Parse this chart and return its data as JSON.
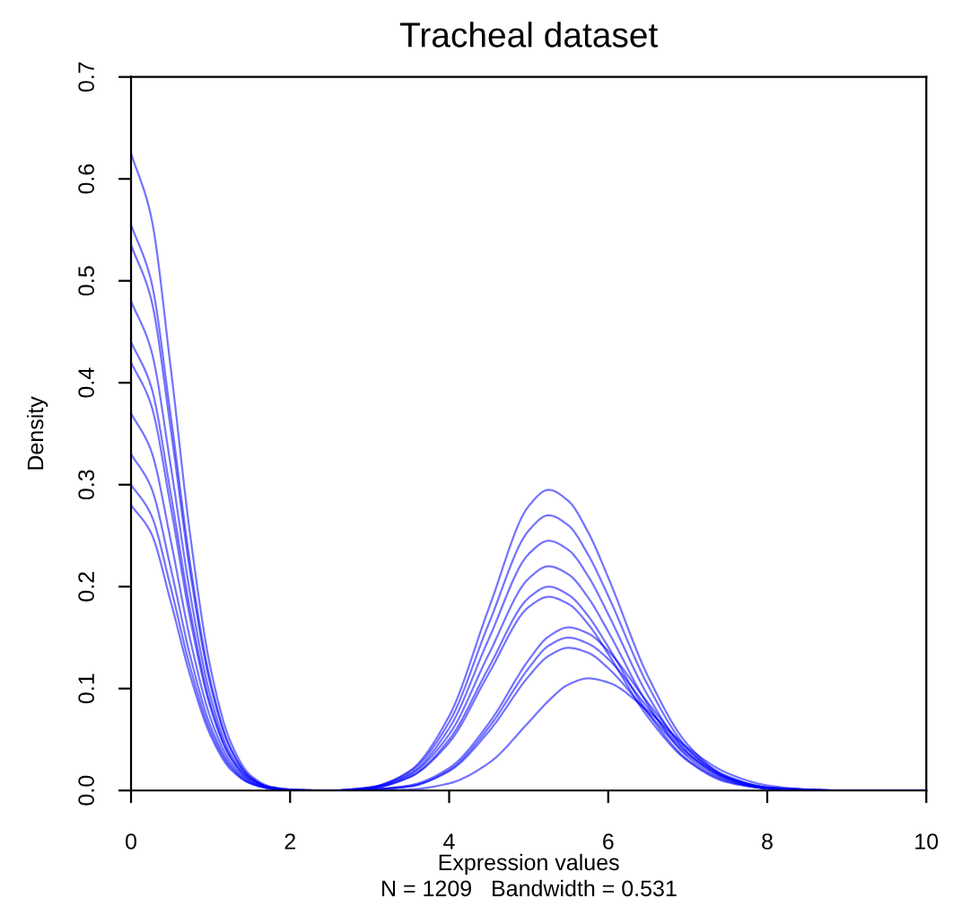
{
  "chart_data": {
    "type": "line",
    "title": "Tracheal dataset",
    "xlabel": "Expression values",
    "ylabel": "Density",
    "annotations": [
      "N = 1209   Bandwidth = 0.531"
    ],
    "x": [
      0,
      0.25,
      0.5,
      0.75,
      1,
      1.25,
      1.5,
      1.75,
      2,
      2.5,
      3,
      3.5,
      4,
      4.5,
      5,
      5.25,
      5.5,
      5.75,
      6,
      6.5,
      7,
      7.5,
      8,
      8.5,
      9,
      10
    ],
    "xlim": [
      0,
      10
    ],
    "xticks": [
      0,
      2,
      4,
      6,
      8,
      10
    ],
    "ylim": [
      0,
      0.7
    ],
    "yticks": [
      {
        "value": 0,
        "label": "0.0"
      },
      0.1,
      0.2,
      0.3,
      0.4,
      0.5,
      0.6,
      0.7
    ],
    "grid": false,
    "marker": "none",
    "line_style": "solid",
    "series": [
      {
        "color": "#0000ff",
        "values": [
          0.625,
          0.564,
          0.414,
          0.247,
          0.12,
          0.048,
          0.015,
          0.004,
          0.001,
          0,
          0,
          0.001,
          0.007,
          0.027,
          0.067,
          0.088,
          0.104,
          0.11,
          0.106,
          0.078,
          0.042,
          0.017,
          0.005,
          0.001,
          0,
          0
        ]
      },
      {
        "color": "#0000ff",
        "values": [
          0.555,
          0.501,
          0.367,
          0.219,
          0.107,
          0.042,
          0.013,
          0.003,
          0.001,
          0,
          0.001,
          0.004,
          0.019,
          0.058,
          0.112,
          0.132,
          0.14,
          0.135,
          0.12,
          0.076,
          0.035,
          0.012,
          0.003,
          0.001,
          0,
          0
        ]
      },
      {
        "color": "#0000ff",
        "values": [
          0.535,
          0.483,
          0.354,
          0.211,
          0.103,
          0.041,
          0.013,
          0.003,
          0.001,
          0,
          0.001,
          0.004,
          0.02,
          0.062,
          0.12,
          0.142,
          0.15,
          0.144,
          0.129,
          0.081,
          0.037,
          0.013,
          0.003,
          0.001,
          0,
          0
        ]
      },
      {
        "color": "#0000ff",
        "values": [
          0.48,
          0.433,
          0.318,
          0.19,
          0.092,
          0.036,
          0.012,
          0.003,
          0,
          0,
          0.001,
          0.005,
          0.022,
          0.066,
          0.128,
          0.151,
          0.16,
          0.154,
          0.137,
          0.086,
          0.04,
          0.014,
          0.003,
          0.001,
          0,
          0
        ]
      },
      {
        "color": "#0000ff",
        "values": [
          0.44,
          0.397,
          0.291,
          0.174,
          0.084,
          0.033,
          0.011,
          0.003,
          0,
          0,
          0.002,
          0.013,
          0.047,
          0.115,
          0.18,
          0.19,
          0.183,
          0.163,
          0.134,
          0.072,
          0.029,
          0.008,
          0.002,
          0,
          0,
          0
        ]
      },
      {
        "color": "#0000ff",
        "values": [
          0.42,
          0.379,
          0.278,
          0.166,
          0.081,
          0.032,
          0.01,
          0.003,
          0,
          0,
          0.002,
          0.013,
          0.05,
          0.121,
          0.189,
          0.2,
          0.192,
          0.171,
          0.141,
          0.076,
          0.03,
          0.009,
          0.002,
          0,
          0,
          0
        ]
      },
      {
        "color": "#0000ff",
        "values": [
          0.37,
          0.334,
          0.245,
          0.146,
          0.071,
          0.028,
          0.009,
          0.002,
          0,
          0,
          0.002,
          0.015,
          0.055,
          0.134,
          0.208,
          0.22,
          0.212,
          0.189,
          0.156,
          0.084,
          0.033,
          0.01,
          0.002,
          0,
          0,
          0
        ]
      },
      {
        "color": "#0000ff",
        "values": [
          0.33,
          0.298,
          0.218,
          0.13,
          0.063,
          0.025,
          0.008,
          0.002,
          0,
          0,
          0.003,
          0.016,
          0.061,
          0.149,
          0.232,
          0.245,
          0.236,
          0.21,
          0.173,
          0.093,
          0.037,
          0.011,
          0.002,
          0,
          0,
          0
        ]
      },
      {
        "color": "#0000ff",
        "values": [
          0.3,
          0.271,
          0.199,
          0.119,
          0.058,
          0.023,
          0.007,
          0.002,
          0,
          0,
          0.003,
          0.018,
          0.067,
          0.164,
          0.255,
          0.27,
          0.26,
          0.231,
          0.191,
          0.103,
          0.041,
          0.012,
          0.002,
          0,
          0,
          0
        ]
      },
      {
        "color": "#0000ff",
        "values": [
          0.28,
          0.253,
          0.185,
          0.111,
          0.054,
          0.021,
          0.007,
          0.002,
          0,
          0,
          0.003,
          0.019,
          0.073,
          0.179,
          0.279,
          0.295,
          0.284,
          0.253,
          0.209,
          0.112,
          0.045,
          0.013,
          0.003,
          0,
          0,
          0
        ]
      }
    ]
  }
}
